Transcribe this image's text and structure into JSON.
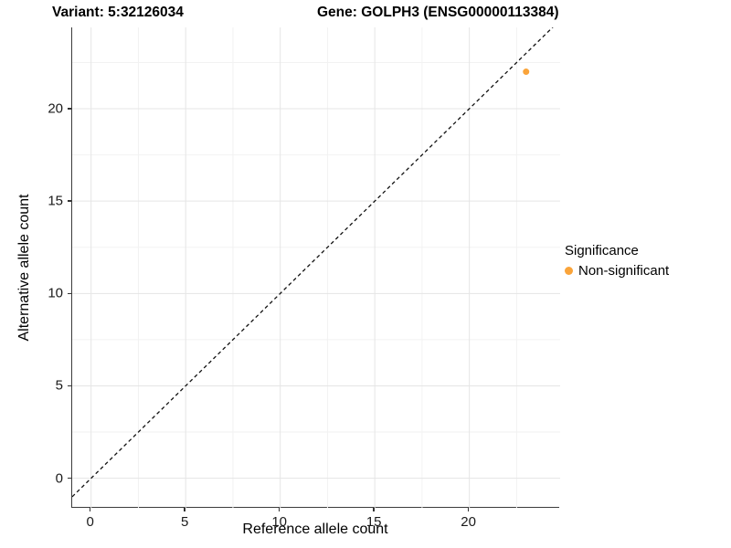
{
  "title": {
    "variant_label": "Variant: 5:32126034",
    "gene_label": "Gene: GOLPH3 (ENSG00000113384)"
  },
  "axes": {
    "x_title": "Reference allele count",
    "y_title": "Alternative allele count"
  },
  "legend": {
    "title": "Significance",
    "items": [
      {
        "label": "Non-significant",
        "color": "#FAA43A"
      }
    ]
  },
  "colors": {
    "point_orange": "#FAA43A",
    "identity_line": "#111111",
    "grid_major": "#E5E5E5",
    "grid_minor": "#F2F2F2",
    "axis_line": "#3c3c3c"
  },
  "chart_data": {
    "type": "scatter",
    "title": "Variant: 5:32126034 | Gene: GOLPH3 (ENSG00000113384)",
    "xlabel": "Reference allele count",
    "ylabel": "Alternative allele count",
    "xlim": [
      -1.0,
      24.8
    ],
    "ylim": [
      -1.6,
      24.4
    ],
    "x_ticks": [
      0,
      5,
      10,
      15,
      20
    ],
    "y_ticks": [
      0,
      5,
      10,
      15,
      20
    ],
    "x_minor_ticks": [
      2.5,
      7.5,
      12.5,
      17.5,
      22.5
    ],
    "y_minor_ticks": [
      2.5,
      7.5,
      12.5,
      17.5,
      22.5
    ],
    "grid": true,
    "legend_position": "right",
    "series": [
      {
        "name": "Non-significant",
        "color": "#FAA43A",
        "points": [
          {
            "x": 23,
            "y": 22
          }
        ]
      }
    ],
    "reference_line": {
      "kind": "identity",
      "slope": 1,
      "intercept": 0,
      "style": "dashed",
      "color": "#111111"
    }
  }
}
